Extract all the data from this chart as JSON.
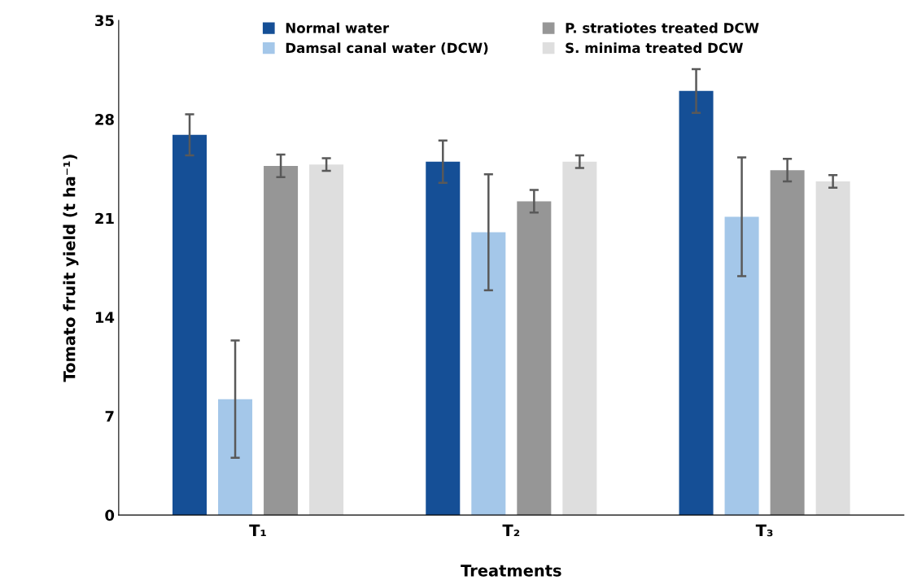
{
  "chart_data": {
    "type": "bar",
    "xlabel": "Treatments",
    "ylabel": "Tomato fruit yield (t ha⁻¹)",
    "categories": [
      "T₁",
      "T₂",
      "T₃"
    ],
    "series": [
      {
        "name": "Normal water",
        "color": "#154f96",
        "values": [
          26.9,
          25.0,
          30.0
        ],
        "errors": [
          1.45,
          1.5,
          1.55
        ]
      },
      {
        "name": "Damsal canal water (DCW)",
        "color": "#a4c7e9",
        "values": [
          8.2,
          20.0,
          21.1
        ],
        "errors": [
          4.15,
          4.1,
          4.2
        ]
      },
      {
        "name": "P. stratiotes treated DCW",
        "color": "#969696",
        "values": [
          24.7,
          22.2,
          24.4
        ],
        "errors": [
          0.8,
          0.8,
          0.8
        ]
      },
      {
        "name": "S. minima treated DCW",
        "color": "#dedede",
        "values": [
          24.8,
          25.0,
          23.6
        ],
        "errors": [
          0.45,
          0.45,
          0.45
        ]
      }
    ],
    "ylim": [
      0,
      35
    ],
    "yticks": [
      0,
      7,
      14,
      21,
      28,
      35
    ],
    "grid": false,
    "legend": "top"
  }
}
